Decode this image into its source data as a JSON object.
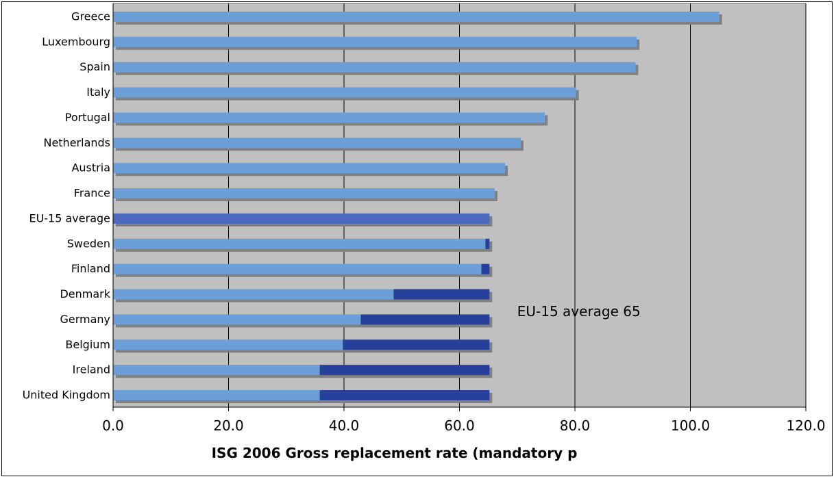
{
  "chart_data": {
    "type": "bar",
    "orientation": "horizontal",
    "stacked": true,
    "categories": [
      "Greece",
      "Luxembourg",
      "Spain",
      "Italy",
      "Portugal",
      "Netherlands",
      "Austria",
      "France",
      "EU-15 average",
      "Sweden",
      "Finland",
      "Denmark",
      "Germany",
      "Belgium",
      "Ireland",
      "United Kingdom"
    ],
    "series": [
      {
        "values": [
          105.0,
          90.7,
          90.5,
          80.2,
          74.8,
          70.6,
          67.9,
          66.1,
          0,
          64.5,
          63.8,
          48.6,
          42.9,
          39.8,
          35.8,
          35.8
        ],
        "color": "#6c9fd8"
      },
      {
        "values": [
          0,
          0,
          0,
          0,
          0,
          0,
          0,
          0,
          65.2,
          0.7,
          1.4,
          16.6,
          22.3,
          25.4,
          29.4,
          29.4
        ],
        "color": "#27409c"
      }
    ],
    "xlabel": "ISG 2006 Gross replacement rate (mandatory p",
    "xlim": [
      0,
      120
    ],
    "xticks": [
      "0.0",
      "20.0",
      "40.0",
      "60.0",
      "80.0",
      "100.0",
      "120.0"
    ],
    "xtick_values": [
      0,
      20,
      40,
      60,
      80,
      100,
      120
    ],
    "annotation": {
      "text": "EU-15 average 65",
      "x": 70,
      "category_index": 12
    },
    "grid": "vertical",
    "plot_background": "#c0c0c0",
    "shadow_color": "#808080",
    "highlight_color": "#4a6bc0"
  }
}
